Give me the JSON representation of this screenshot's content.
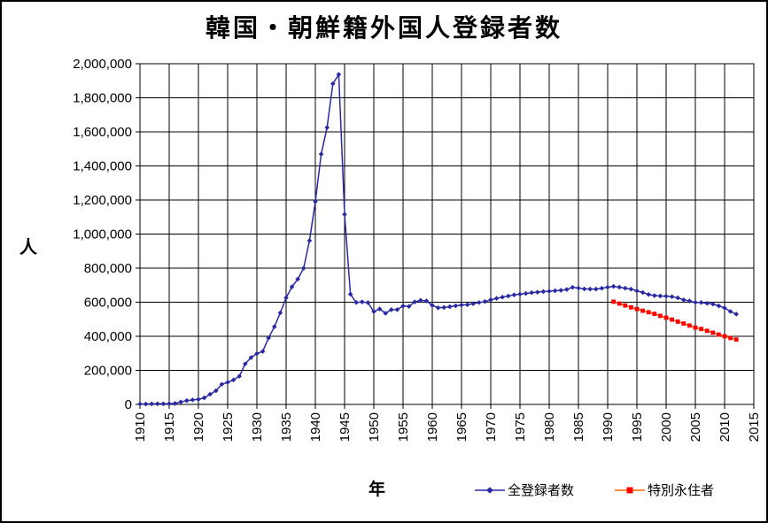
{
  "chart_data": {
    "type": "line",
    "title": "韓国・朝鮮籍外国人登録者数",
    "xlabel": "年",
    "ylabel": "人",
    "xlim": [
      1910,
      2015
    ],
    "ylim": [
      0,
      2000000
    ],
    "grid": true,
    "legend_position": "bottom-right",
    "x_ticks": [
      1910,
      1915,
      1920,
      1925,
      1930,
      1935,
      1940,
      1945,
      1950,
      1955,
      1960,
      1965,
      1970,
      1975,
      1980,
      1985,
      1990,
      1995,
      2000,
      2005,
      2010,
      2015
    ],
    "y_ticks": [
      0,
      200000,
      400000,
      600000,
      800000,
      1000000,
      1200000,
      1400000,
      1600000,
      1800000,
      2000000
    ],
    "y_tick_labels": [
      "0",
      "200,000",
      "400,000",
      "600,000",
      "800,000",
      "1,000,000",
      "1,200,000",
      "1,400,000",
      "1,600,000",
      "1,800,000",
      "2,000,000"
    ],
    "series": [
      {
        "name": "全登録者数",
        "line_color": "#2929a3",
        "marker": "diamond",
        "marker_color": "#2929a3",
        "points": [
          [
            1910,
            2600
          ],
          [
            1911,
            2527
          ],
          [
            1912,
            3171
          ],
          [
            1913,
            3635
          ],
          [
            1914,
            3542
          ],
          [
            1915,
            3992
          ],
          [
            1916,
            5624
          ],
          [
            1917,
            14502
          ],
          [
            1918,
            22411
          ],
          [
            1919,
            26605
          ],
          [
            1920,
            30189
          ],
          [
            1921,
            38651
          ],
          [
            1922,
            59722
          ],
          [
            1923,
            80415
          ],
          [
            1924,
            118152
          ],
          [
            1925,
            129870
          ],
          [
            1926,
            143798
          ],
          [
            1927,
            165286
          ],
          [
            1928,
            238102
          ],
          [
            1929,
            275206
          ],
          [
            1930,
            298091
          ],
          [
            1931,
            311247
          ],
          [
            1932,
            390543
          ],
          [
            1933,
            456217
          ],
          [
            1934,
            537695
          ],
          [
            1935,
            625678
          ],
          [
            1936,
            690501
          ],
          [
            1937,
            735689
          ],
          [
            1938,
            799878
          ],
          [
            1939,
            961591
          ],
          [
            1940,
            1190444
          ],
          [
            1941,
            1469230
          ],
          [
            1942,
            1625054
          ],
          [
            1943,
            1882456
          ],
          [
            1944,
            1936843
          ],
          [
            1945,
            1115594
          ],
          [
            1946,
            647006
          ],
          [
            1947,
            598507
          ],
          [
            1948,
            601772
          ],
          [
            1949,
            597561
          ],
          [
            1950,
            544903
          ],
          [
            1951,
            560700
          ],
          [
            1952,
            535065
          ],
          [
            1953,
            556084
          ],
          [
            1954,
            556173
          ],
          [
            1955,
            577682
          ],
          [
            1956,
            575287
          ],
          [
            1957,
            601769
          ],
          [
            1958,
            611085
          ],
          [
            1959,
            607533
          ],
          [
            1960,
            581257
          ],
          [
            1961,
            567452
          ],
          [
            1962,
            569360
          ],
          [
            1963,
            573537
          ],
          [
            1964,
            578545
          ],
          [
            1965,
            583537
          ],
          [
            1966,
            585278
          ],
          [
            1967,
            591345
          ],
          [
            1968,
            598076
          ],
          [
            1969,
            603712
          ],
          [
            1970,
            614202
          ],
          [
            1971,
            622690
          ],
          [
            1972,
            629809
          ],
          [
            1973,
            636346
          ],
          [
            1974,
            643096
          ],
          [
            1975,
            647156
          ],
          [
            1976,
            651348
          ],
          [
            1977,
            656233
          ],
          [
            1978,
            659025
          ],
          [
            1979,
            662561
          ],
          [
            1980,
            664536
          ],
          [
            1981,
            667325
          ],
          [
            1982,
            669854
          ],
          [
            1983,
            674581
          ],
          [
            1984,
            687135
          ],
          [
            1985,
            683313
          ],
          [
            1986,
            677959
          ],
          [
            1987,
            676982
          ],
          [
            1988,
            677140
          ],
          [
            1989,
            681838
          ],
          [
            1990,
            687940
          ],
          [
            1991,
            693050
          ],
          [
            1992,
            688144
          ],
          [
            1993,
            682276
          ],
          [
            1994,
            676793
          ],
          [
            1995,
            666376
          ],
          [
            1996,
            657159
          ],
          [
            1997,
            645373
          ],
          [
            1998,
            638828
          ],
          [
            1999,
            636548
          ],
          [
            2000,
            635269
          ],
          [
            2001,
            632405
          ],
          [
            2002,
            625422
          ],
          [
            2003,
            613791
          ],
          [
            2004,
            607419
          ],
          [
            2005,
            598687
          ],
          [
            2006,
            598219
          ],
          [
            2007,
            593489
          ],
          [
            2008,
            589239
          ],
          [
            2009,
            578495
          ],
          [
            2010,
            565989
          ],
          [
            2011,
            545401
          ],
          [
            2012,
            530048
          ]
        ]
      },
      {
        "name": "特別永住者",
        "line_color": "#ff6600",
        "marker": "square",
        "marker_color": "#ff0000",
        "points": [
          [
            1991,
            603000
          ],
          [
            1992,
            592000
          ],
          [
            1993,
            581000
          ],
          [
            1994,
            570000
          ],
          [
            1995,
            560000
          ],
          [
            1996,
            550000
          ],
          [
            1997,
            541000
          ],
          [
            1998,
            532000
          ],
          [
            1999,
            520000
          ],
          [
            2000,
            509000
          ],
          [
            2001,
            498000
          ],
          [
            2002,
            486000
          ],
          [
            2003,
            475000
          ],
          [
            2004,
            463000
          ],
          [
            2005,
            451000
          ],
          [
            2006,
            443000
          ],
          [
            2007,
            432000
          ],
          [
            2008,
            421000
          ],
          [
            2009,
            410000
          ],
          [
            2010,
            400000
          ],
          [
            2011,
            390000
          ],
          [
            2012,
            381000
          ]
        ]
      }
    ]
  },
  "colors": {
    "grid": "#000000",
    "axis": "#000000",
    "background": "#ffffff",
    "text": "#000000"
  }
}
